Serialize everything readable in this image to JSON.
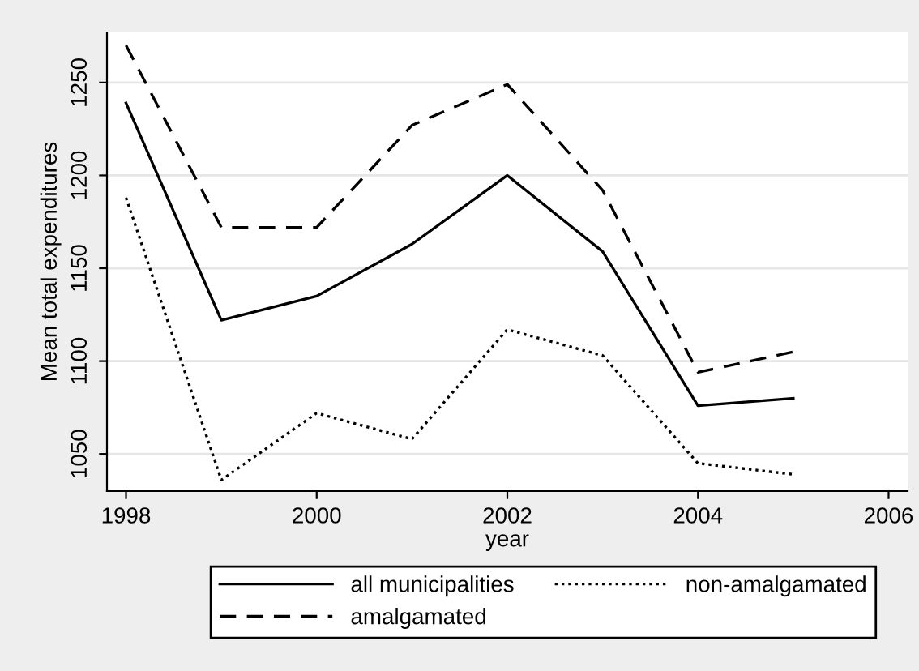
{
  "chart_data": {
    "type": "line",
    "xlabel": "year",
    "ylabel": "Mean total expenditures",
    "x": [
      1998,
      1999,
      2000,
      2001,
      2002,
      2003,
      2004,
      2005
    ],
    "series": [
      {
        "name": "all municipalities",
        "color": "#000000",
        "line_style": "solid",
        "values": [
          1239,
          1122,
          1135,
          1163,
          1200,
          1159,
          1076,
          1080
        ]
      },
      {
        "name": "non-amalgamated",
        "color": "#000000",
        "line_style": "dotted",
        "values": [
          1188,
          1036,
          1072,
          1058,
          1117,
          1103,
          1045,
          1039
        ]
      },
      {
        "name": "amalgamated",
        "color": "#000000",
        "line_style": "dashed",
        "values": [
          1270,
          1172,
          1172,
          1227,
          1249,
          1192,
          1094,
          1105
        ]
      }
    ],
    "xlim": [
      1997.8,
      2006.2
    ],
    "ylim": [
      1030,
      1277
    ],
    "xticks": [
      1998,
      2000,
      2002,
      2004,
      2006
    ],
    "yticks": [
      1050,
      1100,
      1150,
      1200,
      1250
    ],
    "grid": "y",
    "legend": "bottom"
  }
}
